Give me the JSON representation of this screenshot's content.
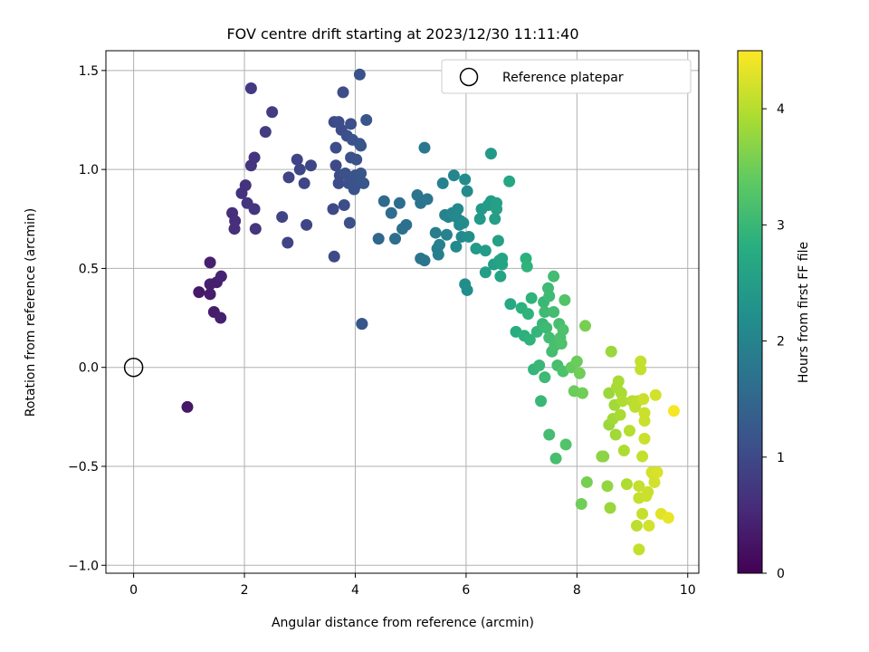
{
  "chart_data": {
    "type": "scatter",
    "title": "FOV centre drift starting at 2023/12/30 11:11:40",
    "xlabel": "Angular distance from reference (arcmin)",
    "ylabel": "Rotation from reference (arcmin)",
    "xlim": [
      -0.5,
      10.2
    ],
    "ylim": [
      -1.04,
      1.6
    ],
    "x_ticks": [
      0,
      2,
      4,
      6,
      8,
      10
    ],
    "x_tick_labels": [
      "0",
      "2",
      "4",
      "6",
      "8",
      "10"
    ],
    "y_ticks": [
      -1.0,
      -0.5,
      0.0,
      0.5,
      1.0,
      1.5
    ],
    "y_tick_labels": [
      "−1.0",
      "−0.5",
      "0.0",
      "0.5",
      "1.0",
      "1.5"
    ],
    "grid": true,
    "legend": {
      "position": "upper-right",
      "entries": [
        "Reference platepar"
      ]
    },
    "reference_point": {
      "x": 0,
      "y": 0,
      "marker": "open-circle"
    },
    "colorbar": {
      "label": "Hours from first FF file",
      "colormap": "viridis",
      "range": [
        0,
        4.5
      ],
      "ticks": [
        0,
        1,
        2,
        3,
        4
      ],
      "tick_labels": [
        "0",
        "1",
        "2",
        "3",
        "4"
      ]
    },
    "points": [
      [
        0.97,
        -0.2,
        0.3
      ],
      [
        1.18,
        0.38,
        0.3
      ],
      [
        1.38,
        0.37,
        0.35
      ],
      [
        1.38,
        0.53,
        0.4
      ],
      [
        1.45,
        0.28,
        0.35
      ],
      [
        1.38,
        0.42,
        0.4
      ],
      [
        1.5,
        0.43,
        0.4
      ],
      [
        1.57,
        0.25,
        0.4
      ],
      [
        1.58,
        0.46,
        0.45
      ],
      [
        1.78,
        0.78,
        0.6
      ],
      [
        1.82,
        0.7,
        0.6
      ],
      [
        1.83,
        0.74,
        0.6
      ],
      [
        1.95,
        0.88,
        0.65
      ],
      [
        2.02,
        0.92,
        0.65
      ],
      [
        2.05,
        0.83,
        0.7
      ],
      [
        2.12,
        1.02,
        0.7
      ],
      [
        2.12,
        1.41,
        0.75
      ],
      [
        2.18,
        1.06,
        0.7
      ],
      [
        2.18,
        0.8,
        0.7
      ],
      [
        2.2,
        0.7,
        0.7
      ],
      [
        2.38,
        1.19,
        0.8
      ],
      [
        2.5,
        1.29,
        0.8
      ],
      [
        2.68,
        0.76,
        0.9
      ],
      [
        2.78,
        0.63,
        0.9
      ],
      [
        2.8,
        0.96,
        0.9
      ],
      [
        2.95,
        1.05,
        0.9
      ],
      [
        3.0,
        1.0,
        0.95
      ],
      [
        3.08,
        0.93,
        0.95
      ],
      [
        3.12,
        0.72,
        0.95
      ],
      [
        3.2,
        1.02,
        0.95
      ],
      [
        3.6,
        0.8,
        1.0
      ],
      [
        3.62,
        0.56,
        1.0
      ],
      [
        3.62,
        1.24,
        1.0
      ],
      [
        3.65,
        1.02,
        1.0
      ],
      [
        3.65,
        1.11,
        1.05
      ],
      [
        3.7,
        0.93,
        1.05
      ],
      [
        3.7,
        1.24,
        1.05
      ],
      [
        3.72,
        0.97,
        1.05
      ],
      [
        3.75,
        1.2,
        1.05
      ],
      [
        3.78,
        1.39,
        1.05
      ],
      [
        3.8,
        0.82,
        1.05
      ],
      [
        3.82,
        0.98,
        1.1
      ],
      [
        3.85,
        1.17,
        1.1
      ],
      [
        3.88,
        0.93,
        1.1
      ],
      [
        3.9,
        0.73,
        1.1
      ],
      [
        3.92,
        1.23,
        1.1
      ],
      [
        3.92,
        1.06,
        1.1
      ],
      [
        3.95,
        0.95,
        1.15
      ],
      [
        3.95,
        1.15,
        1.15
      ],
      [
        3.98,
        0.9,
        1.15
      ],
      [
        4.0,
        0.97,
        1.15
      ],
      [
        4.02,
        1.05,
        1.15
      ],
      [
        4.05,
        0.93,
        1.15
      ],
      [
        4.08,
        1.13,
        1.15
      ],
      [
        4.08,
        1.48,
        1.15
      ],
      [
        4.1,
        0.98,
        1.2
      ],
      [
        4.1,
        1.12,
        1.2
      ],
      [
        4.12,
        0.22,
        1.2
      ],
      [
        4.12,
        0.22,
        1.2
      ],
      [
        4.15,
        0.93,
        1.2
      ],
      [
        4.2,
        1.25,
        1.2
      ],
      [
        4.42,
        0.65,
        1.5
      ],
      [
        4.52,
        0.84,
        1.55
      ],
      [
        4.65,
        0.78,
        1.6
      ],
      [
        4.72,
        0.65,
        1.6
      ],
      [
        4.8,
        0.83,
        1.6
      ],
      [
        4.85,
        0.7,
        1.65
      ],
      [
        4.92,
        0.72,
        1.65
      ],
      [
        5.12,
        0.87,
        1.7
      ],
      [
        5.18,
        0.83,
        1.7
      ],
      [
        5.18,
        0.55,
        1.75
      ],
      [
        5.25,
        0.54,
        1.75
      ],
      [
        5.25,
        1.11,
        1.8
      ],
      [
        5.3,
        0.85,
        1.75
      ],
      [
        5.45,
        0.68,
        1.9
      ],
      [
        5.48,
        0.6,
        1.9
      ],
      [
        5.5,
        0.57,
        1.9
      ],
      [
        5.52,
        0.62,
        1.95
      ],
      [
        5.58,
        0.93,
        2.0
      ],
      [
        5.62,
        0.77,
        2.0
      ],
      [
        5.65,
        0.67,
        2.0
      ],
      [
        5.68,
        0.76,
        2.0
      ],
      [
        5.75,
        0.78,
        2.05
      ],
      [
        5.78,
        0.97,
        2.05
      ],
      [
        5.82,
        0.61,
        2.1
      ],
      [
        5.82,
        0.76,
        2.1
      ],
      [
        5.85,
        0.8,
        2.1
      ],
      [
        5.88,
        0.72,
        2.1
      ],
      [
        5.9,
        0.74,
        2.1
      ],
      [
        5.92,
        0.66,
        2.1
      ],
      [
        5.95,
        0.73,
        2.15
      ],
      [
        5.98,
        0.95,
        2.15
      ],
      [
        5.98,
        0.42,
        2.2
      ],
      [
        6.02,
        0.89,
        2.15
      ],
      [
        6.02,
        0.39,
        2.2
      ],
      [
        6.05,
        0.66,
        2.2
      ],
      [
        6.18,
        0.6,
        2.4
      ],
      [
        6.25,
        0.75,
        2.4
      ],
      [
        6.28,
        0.8,
        2.4
      ],
      [
        6.35,
        0.59,
        2.45
      ],
      [
        6.35,
        0.48,
        2.5
      ],
      [
        6.4,
        0.82,
        2.45
      ],
      [
        6.45,
        0.84,
        2.45
      ],
      [
        6.45,
        1.08,
        2.4
      ],
      [
        6.5,
        0.52,
        2.5
      ],
      [
        6.52,
        0.75,
        2.5
      ],
      [
        6.55,
        0.8,
        2.55
      ],
      [
        6.55,
        0.83,
        2.55
      ],
      [
        6.58,
        0.64,
        2.55
      ],
      [
        6.6,
        0.54,
        2.6
      ],
      [
        6.62,
        0.46,
        2.6
      ],
      [
        6.65,
        0.55,
        2.6
      ],
      [
        6.65,
        0.52,
        2.6
      ],
      [
        6.78,
        0.94,
        2.65
      ],
      [
        6.8,
        0.32,
        2.7
      ],
      [
        6.9,
        0.18,
        2.8
      ],
      [
        7.0,
        0.3,
        2.85
      ],
      [
        7.05,
        0.16,
        2.85
      ],
      [
        7.08,
        0.55,
        2.85
      ],
      [
        7.1,
        0.51,
        2.9
      ],
      [
        7.12,
        0.27,
        2.9
      ],
      [
        7.15,
        0.14,
        2.9
      ],
      [
        7.18,
        0.35,
        2.9
      ],
      [
        7.22,
        -0.01,
        2.95
      ],
      [
        7.28,
        0.18,
        2.95
      ],
      [
        7.32,
        0.01,
        3.0
      ],
      [
        7.35,
        -0.17,
        3.0
      ],
      [
        7.38,
        0.22,
        3.0
      ],
      [
        7.4,
        0.33,
        3.0
      ],
      [
        7.42,
        0.28,
        3.05
      ],
      [
        7.42,
        -0.05,
        3.05
      ],
      [
        7.45,
        0.2,
        3.05
      ],
      [
        7.48,
        0.4,
        3.05
      ],
      [
        7.5,
        0.36,
        3.05
      ],
      [
        7.5,
        0.15,
        3.1
      ],
      [
        7.5,
        -0.34,
        3.1
      ],
      [
        7.55,
        0.08,
        3.1
      ],
      [
        7.58,
        0.46,
        3.1
      ],
      [
        7.58,
        0.28,
        3.1
      ],
      [
        7.6,
        0.11,
        3.15
      ],
      [
        7.62,
        -0.46,
        3.15
      ],
      [
        7.65,
        0.01,
        3.15
      ],
      [
        7.68,
        0.22,
        3.15
      ],
      [
        7.7,
        0.15,
        3.2
      ],
      [
        7.72,
        0.12,
        3.2
      ],
      [
        7.75,
        -0.02,
        3.2
      ],
      [
        7.75,
        0.19,
        3.2
      ],
      [
        7.78,
        0.34,
        3.25
      ],
      [
        7.8,
        -0.39,
        3.25
      ],
      [
        7.9,
        0.0,
        3.4
      ],
      [
        7.95,
        -0.12,
        3.45
      ],
      [
        8.0,
        0.03,
        3.45
      ],
      [
        8.05,
        -0.03,
        3.5
      ],
      [
        8.08,
        -0.69,
        3.5
      ],
      [
        8.1,
        -0.13,
        3.5
      ],
      [
        8.15,
        0.21,
        3.55
      ],
      [
        8.18,
        -0.58,
        3.55
      ],
      [
        8.45,
        -0.45,
        3.7
      ],
      [
        8.48,
        -0.45,
        3.7
      ],
      [
        8.55,
        -0.6,
        3.75
      ],
      [
        8.58,
        -0.29,
        3.8
      ],
      [
        8.58,
        -0.13,
        3.8
      ],
      [
        8.6,
        -0.71,
        3.8
      ],
      [
        8.62,
        0.08,
        3.8
      ],
      [
        8.65,
        -0.26,
        3.85
      ],
      [
        8.68,
        -0.19,
        3.85
      ],
      [
        8.7,
        -0.34,
        3.85
      ],
      [
        8.72,
        -0.1,
        3.9
      ],
      [
        8.75,
        -0.07,
        3.9
      ],
      [
        8.78,
        -0.24,
        3.9
      ],
      [
        8.8,
        -0.13,
        3.9
      ],
      [
        8.82,
        -0.17,
        3.95
      ],
      [
        8.85,
        -0.42,
        3.95
      ],
      [
        8.9,
        -0.59,
        3.95
      ],
      [
        8.95,
        -0.32,
        4.0
      ],
      [
        9.0,
        -0.17,
        4.0
      ],
      [
        9.05,
        -0.2,
        4.05
      ],
      [
        9.08,
        -0.8,
        4.05
      ],
      [
        9.1,
        -0.17,
        4.05
      ],
      [
        9.12,
        -0.92,
        4.1
      ],
      [
        9.12,
        -0.66,
        4.1
      ],
      [
        9.12,
        -0.6,
        4.1
      ],
      [
        9.15,
        0.03,
        4.1
      ],
      [
        9.15,
        -0.01,
        4.1
      ],
      [
        9.18,
        -0.45,
        4.1
      ],
      [
        9.18,
        -0.74,
        4.1
      ],
      [
        9.2,
        -0.16,
        4.15
      ],
      [
        9.22,
        -0.23,
        4.15
      ],
      [
        9.22,
        -0.27,
        4.15
      ],
      [
        9.22,
        -0.36,
        4.15
      ],
      [
        9.25,
        -0.65,
        4.15
      ],
      [
        9.28,
        -0.63,
        4.15
      ],
      [
        9.3,
        -0.8,
        4.2
      ],
      [
        9.35,
        -0.53,
        4.2
      ],
      [
        9.38,
        -0.54,
        4.2
      ],
      [
        9.4,
        -0.58,
        4.2
      ],
      [
        9.42,
        -0.14,
        4.2
      ],
      [
        9.45,
        -0.53,
        4.25
      ],
      [
        9.52,
        -0.74,
        4.3
      ],
      [
        9.65,
        -0.76,
        4.35
      ],
      [
        9.75,
        -0.22,
        4.45
      ]
    ]
  }
}
